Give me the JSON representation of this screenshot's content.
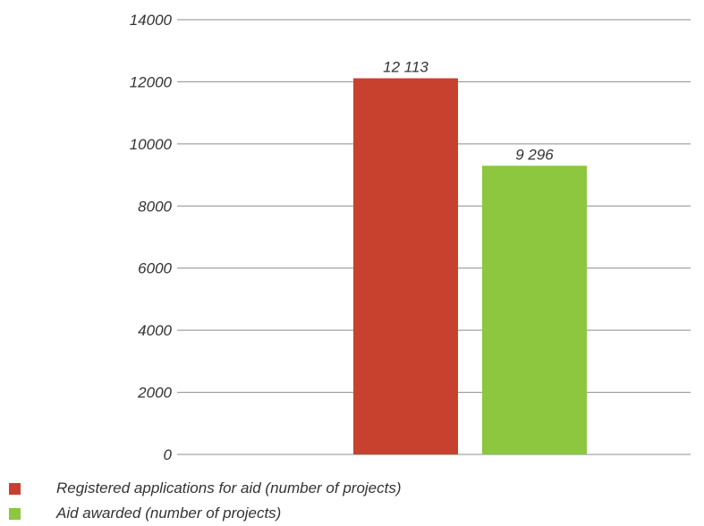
{
  "chart_data": {
    "type": "bar",
    "categories": [
      ""
    ],
    "series": [
      {
        "name": "Registered applications for aid (number of projects)",
        "values": [
          12113
        ],
        "label": "12 113",
        "color": "#c8412e"
      },
      {
        "name": "Aid awarded (number of projects)",
        "values": [
          9296
        ],
        "label": "9 296",
        "color": "#8dc63f"
      }
    ],
    "title": "",
    "xlabel": "",
    "ylabel": "",
    "ylim": [
      0,
      14000
    ],
    "yticks": [
      "0",
      "2000",
      "4000",
      "6000",
      "8000",
      "10000",
      "12000",
      "14000"
    ],
    "grid": true,
    "legend_position": "bottom-left"
  }
}
